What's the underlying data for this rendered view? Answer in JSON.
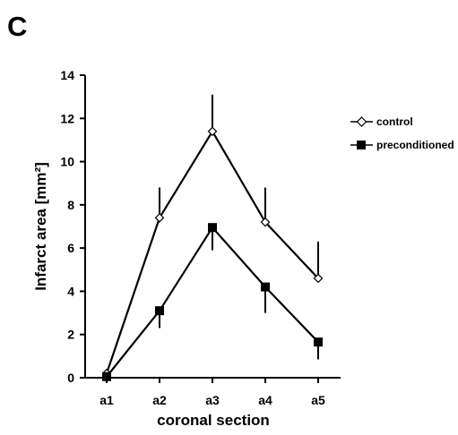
{
  "panel_label": "C",
  "chart_data": {
    "type": "line",
    "title": "",
    "xlabel": "coronal section",
    "ylabel": "Infarct area [mm²]",
    "categories": [
      "a1",
      "a2",
      "a3",
      "a4",
      "a5"
    ],
    "ylim": [
      0,
      14
    ],
    "yticks": [
      0,
      2,
      4,
      6,
      8,
      10,
      12,
      14
    ],
    "grid": false,
    "legend_position": "top-right",
    "series": [
      {
        "name": "control",
        "marker": "open-diamond",
        "color": "#000000",
        "values": [
          0.2,
          7.4,
          11.4,
          7.2,
          4.6
        ],
        "error_upper": [
          0.3,
          8.8,
          13.1,
          8.8,
          6.3
        ]
      },
      {
        "name": "preconditioned",
        "marker": "filled-square",
        "color": "#000000",
        "values": [
          0.05,
          3.1,
          6.95,
          4.2,
          1.65
        ],
        "error_lower": [
          0.0,
          2.3,
          5.9,
          3.0,
          0.85
        ]
      }
    ]
  }
}
